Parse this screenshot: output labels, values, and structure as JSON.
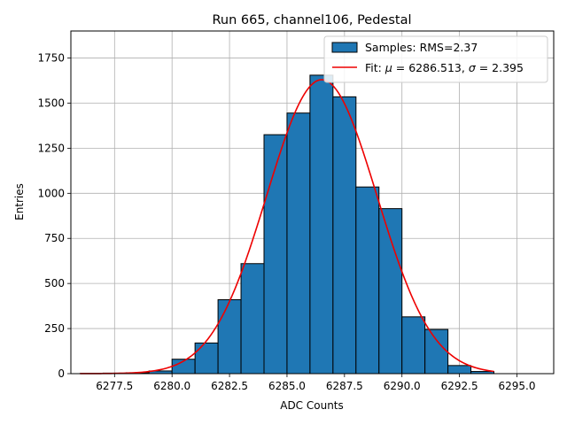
{
  "chart_data": {
    "type": "bar",
    "title": "Run 665, channel106, Pedestal",
    "xlabel": "ADC Counts",
    "ylabel": "Entries",
    "xlim": [
      6275.6,
      6296.6
    ],
    "ylim": [
      0,
      1900
    ],
    "xticks": [
      6277.5,
      6280.0,
      6282.5,
      6285.0,
      6287.5,
      6290.0,
      6292.5,
      6295.0
    ],
    "xtick_labels": [
      "6277.5",
      "6280.0",
      "6282.5",
      "6285.0",
      "6287.5",
      "6290.0",
      "6292.5",
      "6295.0"
    ],
    "yticks": [
      0,
      250,
      500,
      750,
      1000,
      1250,
      1500,
      1750
    ],
    "ytick_labels": [
      "0",
      "250",
      "500",
      "750",
      "1000",
      "1250",
      "1500",
      "1750"
    ],
    "grid": true,
    "legend_position": "top-right",
    "colors": {
      "bars": "#1f77b4",
      "bar_edge": "#000000",
      "fit": "#ee0000",
      "grid": "#b0b0b0"
    },
    "histogram": {
      "name": "Samples: RMS=2.37",
      "bin_edges": [
        6276,
        6277,
        6278,
        6279,
        6280,
        6281,
        6282,
        6283,
        6284,
        6285,
        6286,
        6287,
        6288,
        6289,
        6290,
        6291,
        6292,
        6293,
        6294
      ],
      "counts": [
        1,
        3,
        5,
        15,
        80,
        170,
        410,
        610,
        1325,
        1445,
        1655,
        1535,
        1035,
        915,
        315,
        245,
        45,
        12
      ]
    },
    "fit": {
      "label_prefix": "Fit: ",
      "label_mu": "μ",
      "label_mid": " = 6286.513, ",
      "label_sigma": "σ",
      "label_end": " = 2.395",
      "mu": 6286.513,
      "sigma": 2.395,
      "amplitude": 1630,
      "x_range": [
        6276,
        6294
      ]
    }
  }
}
